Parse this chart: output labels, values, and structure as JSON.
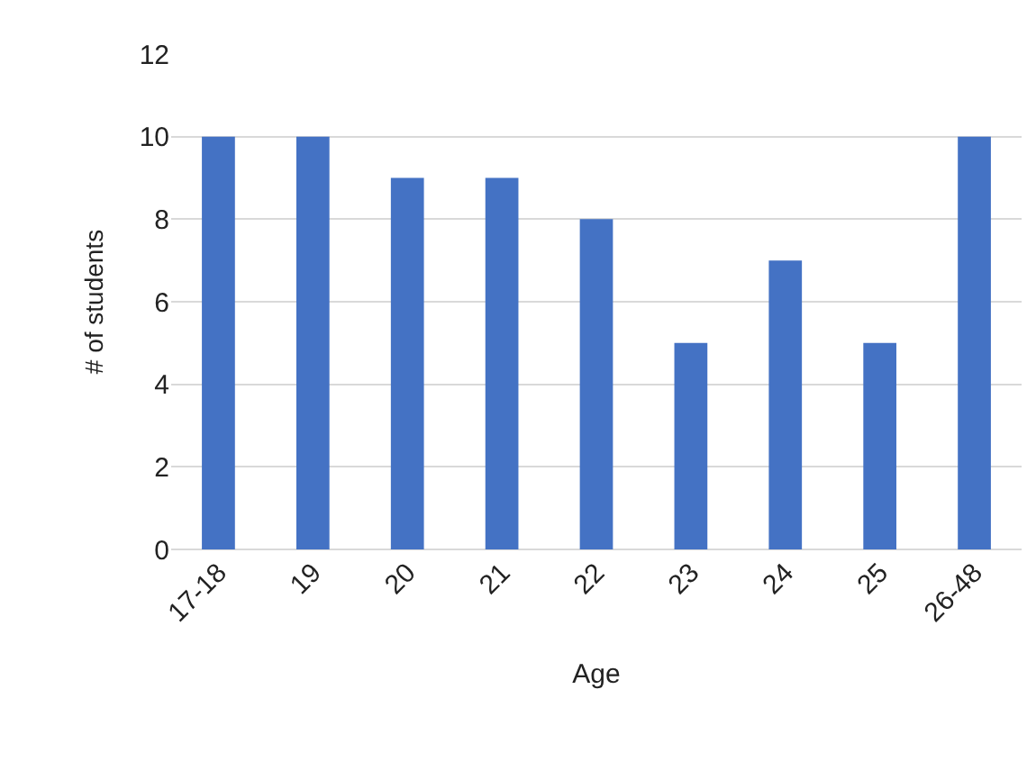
{
  "chart_data": {
    "type": "bar",
    "categories": [
      "17-18",
      "19",
      "20",
      "21",
      "22",
      "23",
      "24",
      "25",
      "26-48"
    ],
    "values": [
      10,
      10,
      9,
      9,
      8,
      5,
      7,
      5,
      10
    ],
    "color": "#4472c4",
    "xlabel": "Age",
    "ylabel": "# of students",
    "ylim": [
      0,
      12
    ],
    "yticks": [
      0,
      2,
      4,
      6,
      8,
      10,
      12
    ],
    "grid": "y",
    "legend": false
  }
}
